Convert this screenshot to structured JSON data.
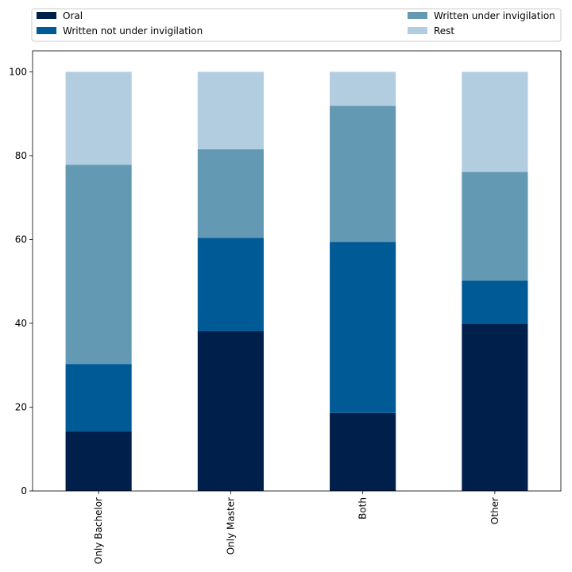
{
  "chart_data": {
    "type": "bar",
    "stacked": true,
    "categories": [
      "Only Bachelor",
      "Only Master",
      "Both",
      "Other"
    ],
    "series": [
      {
        "name": "Oral",
        "values": [
          14.2,
          38.1,
          18.6,
          39.8
        ],
        "color": "#001f4b"
      },
      {
        "name": "Written not under invigilation",
        "values": [
          16.1,
          22.3,
          40.8,
          10.4
        ],
        "color": "#005a96"
      },
      {
        "name": "Written under invigilation",
        "values": [
          47.5,
          21.1,
          32.5,
          25.9
        ],
        "color": "#6499b4"
      },
      {
        "name": "Rest",
        "values": [
          22.2,
          18.5,
          8.1,
          23.9
        ],
        "color": "#b3cde0"
      }
    ],
    "title": "",
    "xlabel": "",
    "ylabel": "",
    "ylim": [
      0,
      105
    ],
    "yticks": [
      0,
      20,
      40,
      60,
      80,
      100
    ],
    "grid": false,
    "legend_position": "top"
  }
}
